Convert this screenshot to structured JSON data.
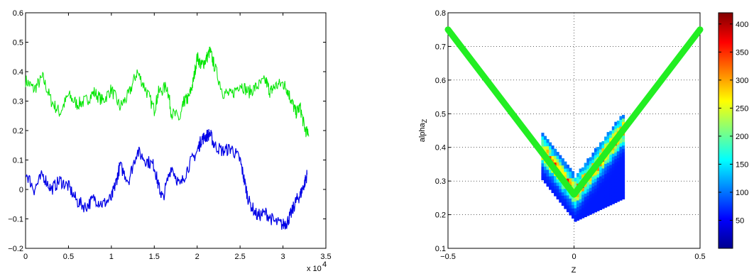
{
  "chart_data": [
    {
      "type": "line",
      "title": "",
      "xlabel": "",
      "ylabel": "",
      "x_multiplier": "x 10^4",
      "xlim": [
        0,
        3.5
      ],
      "ylim": [
        -0.2,
        0.6
      ],
      "xticks": [
        "0",
        "0.5",
        "1",
        "1.5",
        "2",
        "2.5",
        "3",
        "3.5"
      ],
      "yticks": [
        "−0.2",
        "−0.1",
        "0",
        "0.1",
        "0.2",
        "0.3",
        "0.4",
        "0.5",
        "0.6"
      ],
      "grid": false,
      "series": [
        {
          "color": "#00e600",
          "points": [
            [
              0,
              0.37
            ],
            [
              0.1,
              0.34
            ],
            [
              0.2,
              0.38
            ],
            [
              0.3,
              0.3
            ],
            [
              0.4,
              0.26
            ],
            [
              0.5,
              0.32
            ],
            [
              0.6,
              0.29
            ],
            [
              0.7,
              0.3
            ],
            [
              0.8,
              0.33
            ],
            [
              0.9,
              0.3
            ],
            [
              1.0,
              0.34
            ],
            [
              1.1,
              0.28
            ],
            [
              1.2,
              0.32
            ],
            [
              1.3,
              0.4
            ],
            [
              1.4,
              0.34
            ],
            [
              1.5,
              0.27
            ],
            [
              1.55,
              0.33
            ],
            [
              1.65,
              0.35
            ],
            [
              1.7,
              0.26
            ],
            [
              1.8,
              0.24
            ],
            [
              1.85,
              0.3
            ],
            [
              1.9,
              0.31
            ],
            [
              1.95,
              0.36
            ],
            [
              2.0,
              0.45
            ],
            [
              2.05,
              0.42
            ],
            [
              2.1,
              0.44
            ],
            [
              2.15,
              0.47
            ],
            [
              2.2,
              0.42
            ],
            [
              2.3,
              0.33
            ],
            [
              2.4,
              0.32
            ],
            [
              2.5,
              0.36
            ],
            [
              2.6,
              0.33
            ],
            [
              2.7,
              0.35
            ],
            [
              2.8,
              0.37
            ],
            [
              2.85,
              0.33
            ],
            [
              2.9,
              0.35
            ],
            [
              3.0,
              0.36
            ],
            [
              3.05,
              0.34
            ],
            [
              3.1,
              0.3
            ],
            [
              3.15,
              0.26
            ],
            [
              3.2,
              0.28
            ],
            [
              3.25,
              0.21
            ],
            [
              3.3,
              0.18
            ]
          ]
        },
        {
          "color": "#0000e6",
          "points": [
            [
              0,
              0.06
            ],
            [
              0.1,
              0.0
            ],
            [
              0.2,
              0.05
            ],
            [
              0.3,
              0.0
            ],
            [
              0.4,
              0.03
            ],
            [
              0.5,
              0.01
            ],
            [
              0.6,
              -0.04
            ],
            [
              0.7,
              -0.06
            ],
            [
              0.8,
              -0.03
            ],
            [
              0.9,
              -0.05
            ],
            [
              1.0,
              -0.03
            ],
            [
              1.05,
              0.02
            ],
            [
              1.1,
              0.08
            ],
            [
              1.2,
              0.03
            ],
            [
              1.3,
              0.13
            ],
            [
              1.4,
              0.1
            ],
            [
              1.5,
              0.08
            ],
            [
              1.55,
              0.01
            ],
            [
              1.6,
              -0.03
            ],
            [
              1.7,
              0.08
            ],
            [
              1.8,
              0.01
            ],
            [
              1.9,
              0.08
            ],
            [
              2.0,
              0.13
            ],
            [
              2.05,
              0.17
            ],
            [
              2.1,
              0.18
            ],
            [
              2.15,
              0.19
            ],
            [
              2.2,
              0.15
            ],
            [
              2.3,
              0.13
            ],
            [
              2.4,
              0.14
            ],
            [
              2.5,
              0.1
            ],
            [
              2.55,
              0.03
            ],
            [
              2.6,
              -0.04
            ],
            [
              2.7,
              -0.09
            ],
            [
              2.8,
              -0.08
            ],
            [
              2.9,
              -0.11
            ],
            [
              3.0,
              -0.12
            ],
            [
              3.05,
              -0.11
            ],
            [
              3.1,
              -0.08
            ],
            [
              3.15,
              -0.04
            ],
            [
              3.2,
              -0.02
            ],
            [
              3.25,
              0.02
            ],
            [
              3.28,
              0.05
            ]
          ]
        }
      ]
    },
    {
      "type": "heatmap",
      "title": "",
      "xlabel": "Z",
      "ylabel": "alpha",
      "ylabel_sub": "Z",
      "xlim": [
        -0.5,
        0.5
      ],
      "ylim": [
        0.1,
        0.8
      ],
      "xticks": [
        "−0.5",
        "0",
        "0.5"
      ],
      "yticks": [
        "0.1",
        "0.2",
        "0.3",
        "0.4",
        "0.5",
        "0.6",
        "0.7",
        "0.8"
      ],
      "grid": true,
      "fit_line": {
        "color": "#22ee22",
        "points": [
          [
            -0.5,
            0.75
          ],
          [
            0.0,
            0.26
          ],
          [
            0.5,
            0.75
          ]
        ]
      },
      "colorbar": {
        "ticks": [
          "50",
          "100",
          "150",
          "200",
          "250",
          "300",
          "350",
          "400"
        ],
        "range": [
          0,
          420
        ]
      },
      "density_profile": {
        "x_range": [
          -0.13,
          0.19
        ],
        "description_min_alpha": [
          0.18
        ]
      }
    }
  ]
}
